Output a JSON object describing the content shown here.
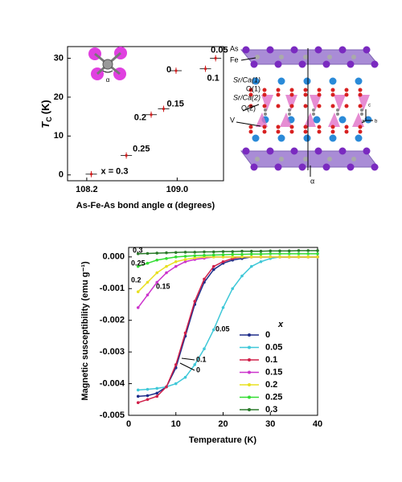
{
  "chart_data": [
    {
      "type": "scatter",
      "y_label": {
        "symbol": "T",
        "subscript": "C",
        "unit": "(K)"
      },
      "x_label": "As-Fe-As bond angle α (degrees)",
      "inset_label": "α",
      "xlim": [
        108.03,
        109.41
      ],
      "ylim": [
        -1.5,
        33
      ],
      "xticks": [
        108.2,
        {
          "value": 109,
          "label": "109.0"
        }
      ],
      "yticks": [
        0,
        10,
        20,
        30
      ],
      "color": "#d02020",
      "point_labels": [
        "x = 0.3",
        "0.25",
        "0.2",
        "0.15",
        "0",
        "0.1",
        "0.05"
      ],
      "x": [
        108.24,
        108.55,
        108.77,
        108.88,
        108.99,
        109.25,
        109.34
      ],
      "values": [
        0.2,
        5.0,
        15.5,
        17.0,
        26.8,
        27.3,
        30.0
      ],
      "x_errors": [
        0.05,
        0.05,
        0.05,
        0.05,
        0.05,
        0.05,
        0.05
      ],
      "errors": [
        0.8,
        0.8,
        0.8,
        0.8,
        0.8,
        0.8,
        0.8
      ]
    },
    {
      "type": "line",
      "y_label": "Magnetic susceptibility (emu g⁻¹)",
      "x_label": "Temperature (K)",
      "legend_title": "x",
      "legend": "lower right",
      "xlim": [
        0,
        40
      ],
      "ylim": [
        -0.005,
        0.0003
      ],
      "xticks": [
        0,
        10,
        20,
        30,
        40
      ],
      "yticks": [
        {
          "value": 0,
          "label": "0.000"
        },
        {
          "value": -0.001,
          "label": "-0.001"
        },
        {
          "value": -0.002,
          "label": "-0.002"
        },
        {
          "value": -0.003,
          "label": "-0.003"
        },
        {
          "value": -0.004,
          "label": "-0.004"
        },
        {
          "value": -0.005,
          "label": "-0.005"
        }
      ],
      "annotations": [
        "0.3",
        "0.25",
        "0.2",
        "0.15",
        "0.05",
        "0.1",
        "0"
      ],
      "x": [
        2,
        4,
        6,
        8,
        10,
        12,
        14,
        16,
        18,
        20,
        22,
        24,
        26,
        28,
        30,
        32,
        34,
        36,
        38,
        40
      ],
      "series": [
        {
          "name": "0",
          "color": "#1f2d8a",
          "values": [
            -0.0044,
            -0.00438,
            -0.0043,
            -0.0041,
            -0.0035,
            -0.0025,
            -0.0015,
            -0.0008,
            -0.0004,
            -0.0002,
            -0.0001,
            -5e-05,
            0,
            0,
            0,
            0,
            0,
            0,
            0,
            0
          ]
        },
        {
          "name": "0.05",
          "color": "#3fc8d8",
          "values": [
            -0.0042,
            -0.00418,
            -0.00415,
            -0.0041,
            -0.004,
            -0.0038,
            -0.0034,
            -0.0029,
            -0.0023,
            -0.0016,
            -0.001,
            -0.0006,
            -0.0003,
            -0.00015,
            -5e-05,
            0,
            0,
            0,
            0,
            0
          ]
        },
        {
          "name": "0.1",
          "color": "#d0204a",
          "values": [
            -0.0046,
            -0.0045,
            -0.0044,
            -0.0041,
            -0.0034,
            -0.0024,
            -0.0014,
            -0.0007,
            -0.0003,
            -0.00015,
            -5e-05,
            0,
            0,
            0,
            0,
            0,
            0,
            0,
            0,
            0
          ]
        },
        {
          "name": "0.15",
          "color": "#cc33cc",
          "values": [
            -0.0016,
            -0.0012,
            -0.0008,
            -0.0005,
            -0.0003,
            -0.00015,
            -8e-05,
            -4e-05,
            0,
            0,
            0,
            0,
            0,
            0,
            0,
            0,
            0,
            0,
            0,
            0
          ]
        },
        {
          "name": "0.2",
          "color": "#e8e020",
          "values": [
            -0.0011,
            -0.0008,
            -0.0005,
            -0.0003,
            -0.00015,
            -8e-05,
            -3e-05,
            0,
            0,
            0,
            0,
            0,
            0,
            0,
            0,
            0,
            0,
            0,
            0,
            0
          ]
        },
        {
          "name": "0.25",
          "color": "#33dd33",
          "values": [
            -0.0003,
            -0.0002,
            -0.0001,
            -5e-05,
            0,
            2e-05,
            4e-05,
            5e-05,
            6e-05,
            7e-05,
            8e-05,
            8e-05,
            9e-05,
            9e-05,
            0.0001,
            0.0001,
            0.0001,
            0.0001,
            0.0001,
            0.0001
          ]
        },
        {
          "name": "0.3",
          "color": "#2a7a2a",
          "values": [
            0.0001,
            0.00011,
            0.00012,
            0.00013,
            0.00014,
            0.00015,
            0.00015,
            0.00016,
            0.00016,
            0.00017,
            0.00017,
            0.00018,
            0.00018,
            0.00018,
            0.00019,
            0.00019,
            0.00019,
            0.0002,
            0.0002,
            0.0002
          ]
        }
      ]
    }
  ],
  "structure": {
    "labels": {
      "as": "As",
      "fe": "Fe",
      "srca1": "Sr/Ca(1)",
      "o1": "O(1)",
      "srca2": "Sr/Ca(2)",
      "o2": "O(2)",
      "v": "V",
      "alpha": "α",
      "c": "c",
      "a": "a",
      "b": "b"
    }
  }
}
